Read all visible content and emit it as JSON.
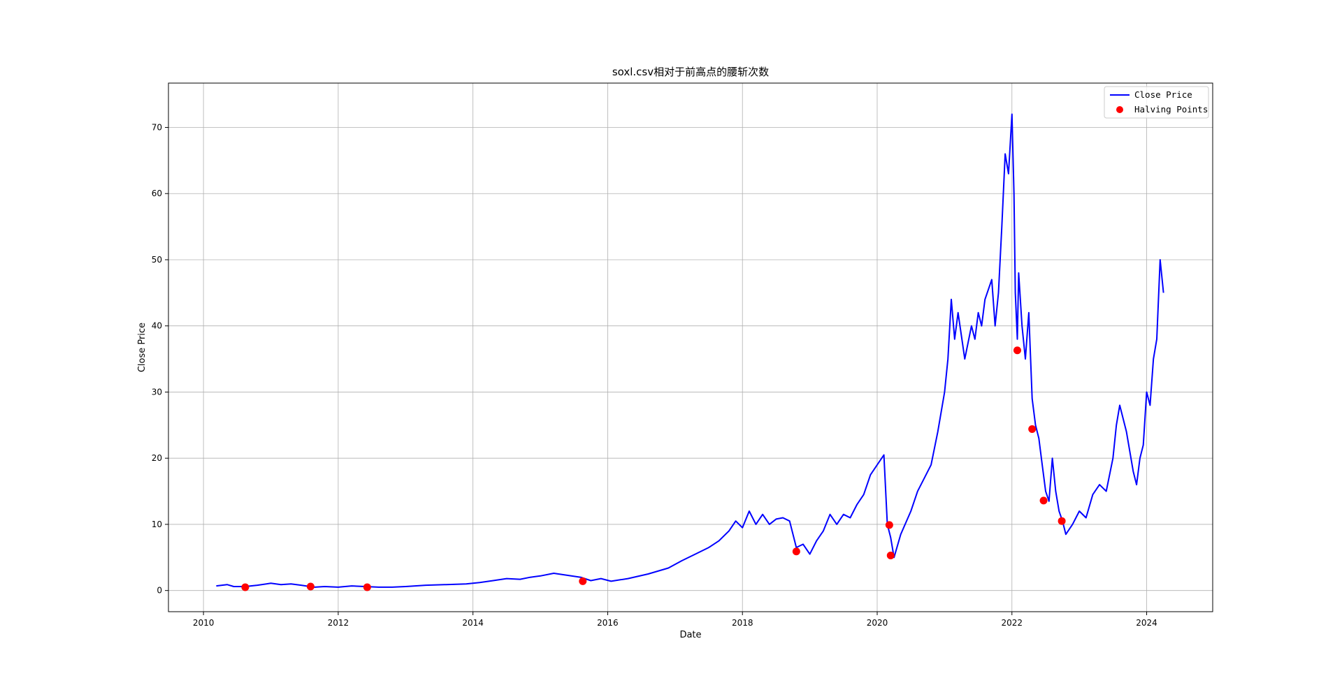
{
  "chart_data": {
    "type": "line",
    "title": "soxl.csv相对于前高点的腰斩次数",
    "xlabel": "Date",
    "ylabel": "Close Price",
    "xlim": [
      2009.48,
      2024.98
    ],
    "ylim": [
      -3.2,
      76.7
    ],
    "x_ticks": [
      2010,
      2012,
      2014,
      2016,
      2018,
      2020,
      2022,
      2024
    ],
    "x_tick_labels": [
      "2010",
      "2012",
      "2014",
      "2016",
      "2018",
      "2020",
      "2022",
      "2024"
    ],
    "y_ticks": [
      0,
      10,
      20,
      30,
      40,
      50,
      60,
      70
    ],
    "y_tick_labels": [
      "0",
      "10",
      "20",
      "30",
      "40",
      "50",
      "60",
      "70"
    ],
    "grid": true,
    "legend_position": "top-right",
    "series": [
      {
        "name": "Close Price",
        "kind": "line",
        "color": "#0000ff",
        "x": [
          2010.19,
          2010.35,
          2010.45,
          2010.62,
          2010.8,
          2011.0,
          2011.15,
          2011.3,
          2011.45,
          2011.58,
          2011.65,
          2011.8,
          2012.0,
          2012.2,
          2012.4,
          2012.6,
          2012.8,
          2013.0,
          2013.3,
          2013.6,
          2013.9,
          2014.1,
          2014.3,
          2014.5,
          2014.7,
          2014.85,
          2015.0,
          2015.2,
          2015.4,
          2015.6,
          2015.75,
          2015.9,
          2016.05,
          2016.3,
          2016.6,
          2016.9,
          2017.1,
          2017.3,
          2017.5,
          2017.65,
          2017.8,
          2017.9,
          2018.0,
          2018.1,
          2018.2,
          2018.3,
          2018.4,
          2018.5,
          2018.6,
          2018.7,
          2018.8,
          2018.9,
          2019.0,
          2019.1,
          2019.2,
          2019.3,
          2019.4,
          2019.5,
          2019.6,
          2019.7,
          2019.8,
          2019.9,
          2020.0,
          2020.1,
          2020.15,
          2020.2,
          2020.25,
          2020.35,
          2020.5,
          2020.6,
          2020.7,
          2020.8,
          2020.9,
          2021.0,
          2021.05,
          2021.1,
          2021.15,
          2021.2,
          2021.3,
          2021.4,
          2021.45,
          2021.5,
          2021.55,
          2021.6,
          2021.7,
          2021.75,
          2021.8,
          2021.85,
          2021.9,
          2021.95,
          2022.0,
          2022.03,
          2022.05,
          2022.08,
          2022.1,
          2022.15,
          2022.2,
          2022.25,
          2022.3,
          2022.35,
          2022.4,
          2022.45,
          2022.5,
          2022.55,
          2022.6,
          2022.65,
          2022.7,
          2022.75,
          2022.8,
          2022.9,
          2023.0,
          2023.1,
          2023.2,
          2023.3,
          2023.4,
          2023.5,
          2023.55,
          2023.6,
          2023.7,
          2023.8,
          2023.85,
          2023.9,
          2023.95,
          2024.0,
          2024.05,
          2024.1,
          2024.15,
          2024.2,
          2024.25
        ],
        "y": [
          0.7,
          0.9,
          0.6,
          0.6,
          0.8,
          1.1,
          0.9,
          1.0,
          0.8,
          0.6,
          0.5,
          0.6,
          0.5,
          0.7,
          0.6,
          0.5,
          0.5,
          0.6,
          0.8,
          0.9,
          1.0,
          1.2,
          1.5,
          1.8,
          1.7,
          2.0,
          2.2,
          2.6,
          2.3,
          2.0,
          1.5,
          1.8,
          1.4,
          1.8,
          2.5,
          3.4,
          4.5,
          5.5,
          6.5,
          7.5,
          9.0,
          10.5,
          9.5,
          12.0,
          10.0,
          11.5,
          10.0,
          10.8,
          11.0,
          10.5,
          6.5,
          7.0,
          5.5,
          7.5,
          9.0,
          11.5,
          10.0,
          11.5,
          11.0,
          13.0,
          14.5,
          17.5,
          19.0,
          20.5,
          10.0,
          8.0,
          5.0,
          8.5,
          12.0,
          15.0,
          17.0,
          19.0,
          24.0,
          30.0,
          35.0,
          44.0,
          38.0,
          42.0,
          35.0,
          40.0,
          38.0,
          42.0,
          40.0,
          44.0,
          47.0,
          40.0,
          45.0,
          55.0,
          66.0,
          63.0,
          72.0,
          60.0,
          45.0,
          38.0,
          48.0,
          40.0,
          35.0,
          42.0,
          29.0,
          25.0,
          23.0,
          19.0,
          15.0,
          13.5,
          20.0,
          15.0,
          12.0,
          10.5,
          8.5,
          10.0,
          12.0,
          11.0,
          14.5,
          16.0,
          15.0,
          20.0,
          25.0,
          28.0,
          24.0,
          18.0,
          16.0,
          20.0,
          22.0,
          30.0,
          28.0,
          35.0,
          38.0,
          50.0,
          45.0
        ]
      },
      {
        "name": "Halving Points",
        "kind": "scatter",
        "color": "#ff0000",
        "x": [
          2010.62,
          2011.59,
          2012.43,
          2015.63,
          2018.8,
          2020.18,
          2020.2,
          2022.08,
          2022.3,
          2022.47,
          2022.74
        ],
        "y": [
          0.5,
          0.6,
          0.5,
          1.4,
          5.9,
          9.9,
          5.3,
          36.3,
          24.4,
          13.6,
          10.5
        ]
      }
    ]
  }
}
